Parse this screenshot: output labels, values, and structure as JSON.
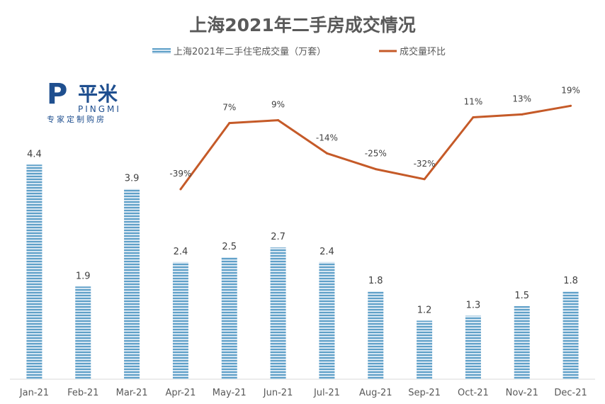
{
  "chart_data": {
    "type": "bar+line",
    "title": "上海2021年二手房成交情况",
    "categories": [
      "Jan-21",
      "Feb-21",
      "Mar-21",
      "Apr-21",
      "May-21",
      "Jun-21",
      "Jul-21",
      "Aug-21",
      "Sep-21",
      "Oct-21",
      "Nov-21",
      "Dec-21"
    ],
    "series": [
      {
        "name": "上海2021年二手住宅成交量（万套）",
        "type": "bar",
        "values": [
          4.4,
          1.9,
          3.9,
          2.4,
          2.5,
          2.7,
          2.4,
          1.8,
          1.2,
          1.3,
          1.5,
          1.8
        ],
        "labels": [
          "4.4",
          "1.9",
          "3.9",
          "2.4",
          "2.5",
          "2.7",
          "2.4",
          "1.8",
          "1.2",
          "1.3",
          "1.5",
          "1.8"
        ]
      },
      {
        "name": "成交量环比",
        "type": "line",
        "values": [
          null,
          null,
          null,
          -39,
          7,
          9,
          -14,
          -25,
          -32,
          11,
          13,
          19
        ],
        "labels": [
          "",
          "",
          "",
          "-39%",
          "7%",
          "9%",
          "-14%",
          "-25%",
          "-32%",
          "11%",
          "13%",
          "19%"
        ]
      }
    ],
    "ylim_left": [
      0,
      5
    ],
    "ylim_right": [
      -80,
      40
    ],
    "grid": false,
    "legend_position": "top",
    "colors": {
      "bar": "#5b9bd5",
      "bar_stripe": "#a9cbe4",
      "line": "#c55a28",
      "axis": "#d9d9d9"
    }
  },
  "logo": {
    "mark": "P",
    "name": "平米",
    "latin": "PINGMI",
    "slogan": "专家定制购房"
  }
}
